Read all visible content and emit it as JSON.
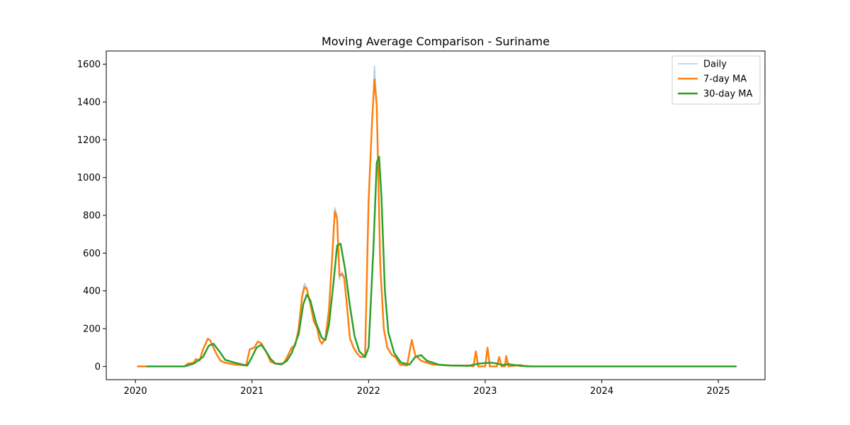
{
  "chart_data": {
    "type": "line",
    "title": "Moving Average Comparison - Suriname",
    "xlabel": "",
    "ylabel": "",
    "xlim": [
      2019.75,
      2025.4
    ],
    "ylim": [
      -70,
      1670
    ],
    "x_ticks": [
      2020,
      2021,
      2022,
      2023,
      2024,
      2025
    ],
    "x_tick_labels": [
      "2020",
      "2021",
      "2022",
      "2023",
      "2024",
      "2025"
    ],
    "y_ticks": [
      0,
      200,
      400,
      600,
      800,
      1000,
      1200,
      1400,
      1600
    ],
    "y_tick_labels": [
      "0",
      "200",
      "400",
      "600",
      "800",
      "1000",
      "1200",
      "1400",
      "1600"
    ],
    "grid": false,
    "legend_position": "top-right",
    "series": [
      {
        "name": "Daily",
        "color": "#aecde6",
        "width": 1.5,
        "points": [
          [
            2020.02,
            0
          ],
          [
            2020.25,
            0
          ],
          [
            2020.42,
            0
          ],
          [
            2020.45,
            15
          ],
          [
            2020.5,
            20
          ],
          [
            2020.52,
            40
          ],
          [
            2020.55,
            30
          ],
          [
            2020.58,
            90
          ],
          [
            2020.62,
            150
          ],
          [
            2020.64,
            140
          ],
          [
            2020.67,
            100
          ],
          [
            2020.7,
            60
          ],
          [
            2020.73,
            30
          ],
          [
            2020.77,
            20
          ],
          [
            2020.85,
            10
          ],
          [
            2020.95,
            5
          ],
          [
            2020.98,
            90
          ],
          [
            2021.02,
            100
          ],
          [
            2021.05,
            135
          ],
          [
            2021.08,
            125
          ],
          [
            2021.12,
            80
          ],
          [
            2021.16,
            25
          ],
          [
            2021.2,
            15
          ],
          [
            2021.27,
            15
          ],
          [
            2021.31,
            60
          ],
          [
            2021.34,
            100
          ],
          [
            2021.37,
            110
          ],
          [
            2021.4,
            200
          ],
          [
            2021.43,
            380
          ],
          [
            2021.45,
            440
          ],
          [
            2021.47,
            420
          ],
          [
            2021.5,
            330
          ],
          [
            2021.53,
            240
          ],
          [
            2021.56,
            200
          ],
          [
            2021.58,
            140
          ],
          [
            2021.6,
            120
          ],
          [
            2021.63,
            150
          ],
          [
            2021.66,
            300
          ],
          [
            2021.69,
            600
          ],
          [
            2021.71,
            840
          ],
          [
            2021.73,
            800
          ],
          [
            2021.75,
            460
          ],
          [
            2021.77,
            500
          ],
          [
            2021.79,
            480
          ],
          [
            2021.81,
            350
          ],
          [
            2021.84,
            150
          ],
          [
            2021.87,
            100
          ],
          [
            2021.9,
            70
          ],
          [
            2021.93,
            50
          ],
          [
            2021.97,
            50
          ],
          [
            2022.0,
            900
          ],
          [
            2022.03,
            1300
          ],
          [
            2022.05,
            1590
          ],
          [
            2022.07,
            1400
          ],
          [
            2022.1,
            550
          ],
          [
            2022.13,
            200
          ],
          [
            2022.16,
            100
          ],
          [
            2022.2,
            60
          ],
          [
            2022.23,
            50
          ],
          [
            2022.27,
            10
          ],
          [
            2022.33,
            5
          ],
          [
            2022.37,
            140
          ],
          [
            2022.4,
            60
          ],
          [
            2022.45,
            30
          ],
          [
            2022.5,
            20
          ],
          [
            2022.55,
            10
          ],
          [
            2022.7,
            5
          ],
          [
            2022.85,
            5
          ],
          [
            2022.9,
            0
          ],
          [
            2022.92,
            80
          ],
          [
            2022.94,
            0
          ],
          [
            2023.0,
            0
          ],
          [
            2023.02,
            100
          ],
          [
            2023.04,
            0
          ],
          [
            2023.1,
            0
          ],
          [
            2023.12,
            50
          ],
          [
            2023.14,
            0
          ],
          [
            2023.17,
            0
          ],
          [
            2023.18,
            55
          ],
          [
            2023.2,
            0
          ],
          [
            2023.3,
            8
          ],
          [
            2023.35,
            0
          ],
          [
            2025.15,
            0
          ]
        ]
      },
      {
        "name": "7-day MA",
        "color": "#ff7f0e",
        "width": 2.5,
        "points": [
          [
            2020.02,
            0
          ],
          [
            2020.25,
            0
          ],
          [
            2020.42,
            0
          ],
          [
            2020.45,
            15
          ],
          [
            2020.5,
            20
          ],
          [
            2020.52,
            40
          ],
          [
            2020.55,
            30
          ],
          [
            2020.58,
            90
          ],
          [
            2020.62,
            145
          ],
          [
            2020.64,
            140
          ],
          [
            2020.67,
            100
          ],
          [
            2020.7,
            60
          ],
          [
            2020.73,
            30
          ],
          [
            2020.77,
            20
          ],
          [
            2020.85,
            10
          ],
          [
            2020.95,
            5
          ],
          [
            2020.98,
            90
          ],
          [
            2021.02,
            100
          ],
          [
            2021.05,
            132
          ],
          [
            2021.08,
            122
          ],
          [
            2021.12,
            80
          ],
          [
            2021.16,
            25
          ],
          [
            2021.2,
            15
          ],
          [
            2021.27,
            15
          ],
          [
            2021.31,
            60
          ],
          [
            2021.34,
            100
          ],
          [
            2021.37,
            110
          ],
          [
            2021.4,
            200
          ],
          [
            2021.43,
            370
          ],
          [
            2021.45,
            420
          ],
          [
            2021.47,
            410
          ],
          [
            2021.5,
            330
          ],
          [
            2021.53,
            240
          ],
          [
            2021.56,
            200
          ],
          [
            2021.58,
            140
          ],
          [
            2021.6,
            120
          ],
          [
            2021.63,
            150
          ],
          [
            2021.66,
            300
          ],
          [
            2021.69,
            600
          ],
          [
            2021.71,
            820
          ],
          [
            2021.73,
            780
          ],
          [
            2021.75,
            480
          ],
          [
            2021.77,
            490
          ],
          [
            2021.79,
            470
          ],
          [
            2021.81,
            350
          ],
          [
            2021.84,
            150
          ],
          [
            2021.87,
            100
          ],
          [
            2021.9,
            70
          ],
          [
            2021.93,
            50
          ],
          [
            2021.97,
            50
          ],
          [
            2022.0,
            880
          ],
          [
            2022.03,
            1300
          ],
          [
            2022.05,
            1520
          ],
          [
            2022.07,
            1380
          ],
          [
            2022.1,
            540
          ],
          [
            2022.13,
            200
          ],
          [
            2022.16,
            100
          ],
          [
            2022.2,
            60
          ],
          [
            2022.23,
            50
          ],
          [
            2022.27,
            10
          ],
          [
            2022.33,
            5
          ],
          [
            2022.37,
            140
          ],
          [
            2022.4,
            60
          ],
          [
            2022.45,
            30
          ],
          [
            2022.5,
            20
          ],
          [
            2022.55,
            10
          ],
          [
            2022.7,
            5
          ],
          [
            2022.85,
            5
          ],
          [
            2022.9,
            0
          ],
          [
            2022.92,
            80
          ],
          [
            2022.94,
            0
          ],
          [
            2023.0,
            0
          ],
          [
            2023.02,
            100
          ],
          [
            2023.04,
            0
          ],
          [
            2023.1,
            0
          ],
          [
            2023.12,
            50
          ],
          [
            2023.14,
            0
          ],
          [
            2023.17,
            0
          ],
          [
            2023.18,
            55
          ],
          [
            2023.2,
            0
          ],
          [
            2023.3,
            8
          ],
          [
            2023.35,
            0
          ],
          [
            2025.15,
            0
          ]
        ]
      },
      {
        "name": "30-day MA",
        "color": "#2ca02c",
        "width": 2.5,
        "points": [
          [
            2020.1,
            0
          ],
          [
            2020.25,
            0
          ],
          [
            2020.42,
            0
          ],
          [
            2020.5,
            15
          ],
          [
            2020.58,
            50
          ],
          [
            2020.63,
            110
          ],
          [
            2020.67,
            120
          ],
          [
            2020.72,
            80
          ],
          [
            2020.77,
            35
          ],
          [
            2020.85,
            20
          ],
          [
            2020.92,
            10
          ],
          [
            2020.96,
            5
          ],
          [
            2021.0,
            50
          ],
          [
            2021.04,
            100
          ],
          [
            2021.08,
            115
          ],
          [
            2021.12,
            80
          ],
          [
            2021.16,
            40
          ],
          [
            2021.2,
            15
          ],
          [
            2021.25,
            10
          ],
          [
            2021.3,
            30
          ],
          [
            2021.34,
            70
          ],
          [
            2021.4,
            170
          ],
          [
            2021.44,
            330
          ],
          [
            2021.47,
            380
          ],
          [
            2021.5,
            350
          ],
          [
            2021.55,
            230
          ],
          [
            2021.6,
            150
          ],
          [
            2021.63,
            140
          ],
          [
            2021.66,
            220
          ],
          [
            2021.7,
            450
          ],
          [
            2021.73,
            640
          ],
          [
            2021.76,
            650
          ],
          [
            2021.8,
            510
          ],
          [
            2021.84,
            320
          ],
          [
            2021.88,
            160
          ],
          [
            2021.92,
            80
          ],
          [
            2021.97,
            50
          ],
          [
            2022.0,
            100
          ],
          [
            2022.04,
            600
          ],
          [
            2022.07,
            1080
          ],
          [
            2022.09,
            1110
          ],
          [
            2022.11,
            900
          ],
          [
            2022.14,
            400
          ],
          [
            2022.17,
            180
          ],
          [
            2022.22,
            70
          ],
          [
            2022.28,
            20
          ],
          [
            2022.35,
            10
          ],
          [
            2022.4,
            50
          ],
          [
            2022.45,
            60
          ],
          [
            2022.5,
            30
          ],
          [
            2022.6,
            10
          ],
          [
            2022.7,
            5
          ],
          [
            2022.85,
            3
          ],
          [
            2022.95,
            15
          ],
          [
            2023.05,
            20
          ],
          [
            2023.1,
            15
          ],
          [
            2023.15,
            8
          ],
          [
            2023.2,
            12
          ],
          [
            2023.25,
            8
          ],
          [
            2023.3,
            3
          ],
          [
            2023.4,
            0
          ],
          [
            2025.15,
            0
          ]
        ]
      }
    ]
  }
}
